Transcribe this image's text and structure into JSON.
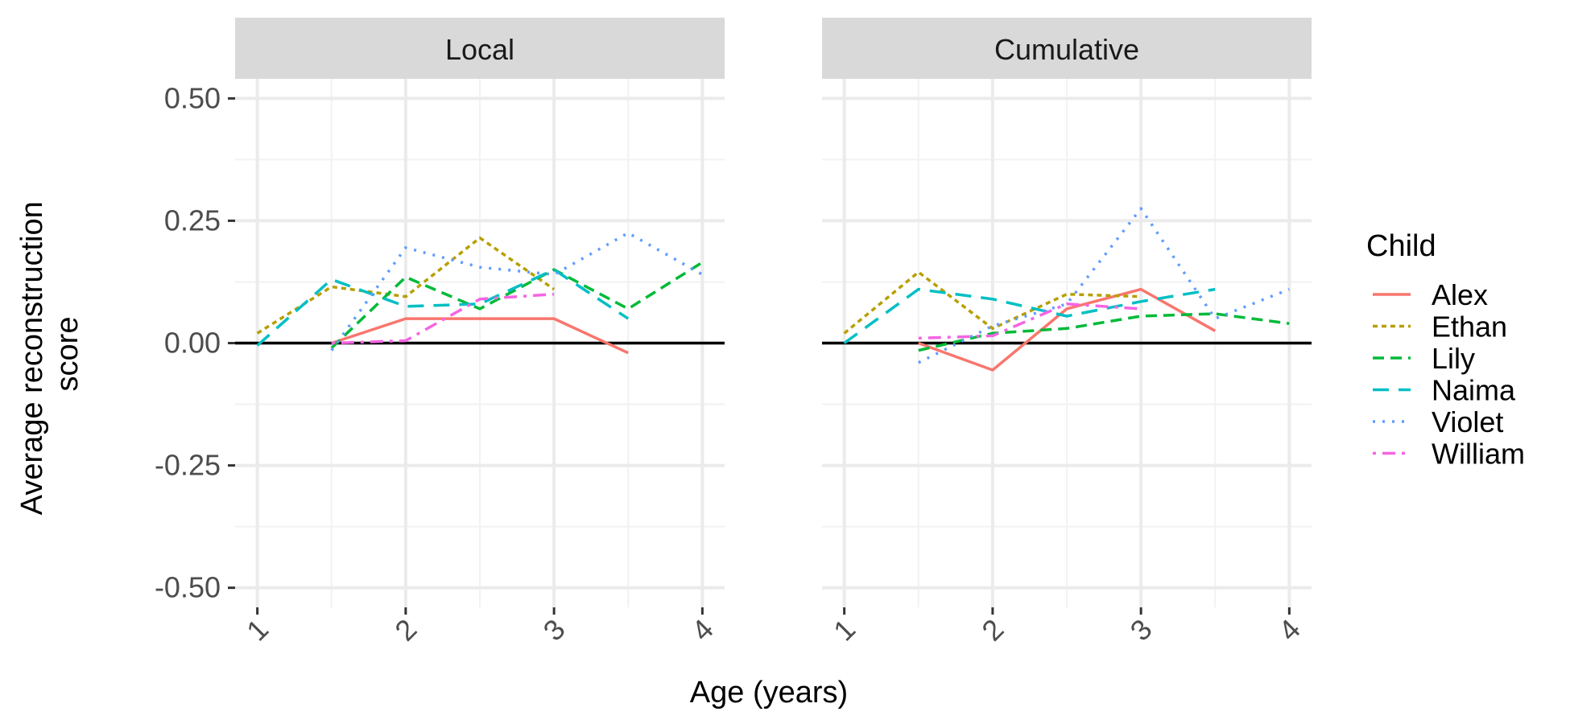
{
  "chart_data": {
    "type": "line",
    "xlabel": "Age (years)",
    "ylabel": [
      "Average reconstruction",
      "score"
    ],
    "xlim": [
      0.85,
      4.15
    ],
    "ylim": [
      -0.54,
      0.54
    ],
    "x_ticks": [
      1,
      2,
      3,
      4
    ],
    "x_tick_labels": [
      "1",
      "2",
      "3",
      "4"
    ],
    "y_ticks": [
      -0.5,
      -0.25,
      0,
      0.25,
      0.5
    ],
    "y_tick_labels": [
      "-0.50",
      "-0.25",
      "0.00",
      "0.25",
      "0.50"
    ],
    "reference_line": 0,
    "grid": true,
    "legend": {
      "title": "Child",
      "placement": "right",
      "entries": [
        "Alex",
        "Ethan",
        "Lily",
        "Naima",
        "Violet",
        "William"
      ]
    },
    "series_styles": [
      {
        "name": "Alex",
        "color": "#F8766D",
        "dash": "solid"
      },
      {
        "name": "Ethan",
        "color": "#B79F00",
        "dash": "dotted-short"
      },
      {
        "name": "Lily",
        "color": "#00BA38",
        "dash": "dashed"
      },
      {
        "name": "Naima",
        "color": "#00BFC4",
        "dash": "longdash"
      },
      {
        "name": "Violet",
        "color": "#619CFF",
        "dash": "dotted"
      },
      {
        "name": "William",
        "color": "#F564E3",
        "dash": "dotdash"
      }
    ],
    "panels": [
      {
        "title": "Local",
        "series": [
          {
            "name": "Alex",
            "points": [
              [
                1.5,
                0.0
              ],
              [
                2.0,
                0.05
              ],
              [
                2.5,
                0.05
              ],
              [
                3.0,
                0.05
              ],
              [
                3.5,
                -0.02
              ]
            ]
          },
          {
            "name": "Ethan",
            "points": [
              [
                1.0,
                0.02
              ],
              [
                1.5,
                0.115
              ],
              [
                2.0,
                0.095
              ],
              [
                2.5,
                0.215
              ],
              [
                3.0,
                0.11
              ]
            ]
          },
          {
            "name": "Lily",
            "points": [
              [
                1.5,
                -0.01
              ],
              [
                2.0,
                0.135
              ],
              [
                2.5,
                0.07
              ],
              [
                3.0,
                0.15
              ],
              [
                3.5,
                0.07
              ],
              [
                4.0,
                0.165
              ]
            ]
          },
          {
            "name": "Naima",
            "points": [
              [
                1.0,
                -0.005
              ],
              [
                1.5,
                0.13
              ],
              [
                2.0,
                0.075
              ],
              [
                2.5,
                0.08
              ],
              [
                3.0,
                0.15
              ],
              [
                3.5,
                0.05
              ]
            ]
          },
          {
            "name": "Violet",
            "points": [
              [
                1.5,
                -0.015
              ],
              [
                2.0,
                0.195
              ],
              [
                2.5,
                0.155
              ],
              [
                3.0,
                0.14
              ],
              [
                3.5,
                0.225
              ],
              [
                4.0,
                0.14
              ]
            ]
          },
          {
            "name": "William",
            "points": [
              [
                1.5,
                0.0
              ],
              [
                2.0,
                0.005
              ],
              [
                2.5,
                0.09
              ],
              [
                3.0,
                0.1
              ]
            ]
          }
        ]
      },
      {
        "title": "Cumulative",
        "series": [
          {
            "name": "Alex",
            "points": [
              [
                1.5,
                0.0
              ],
              [
                2.0,
                -0.055
              ],
              [
                2.5,
                0.07
              ],
              [
                3.0,
                0.11
              ],
              [
                3.5,
                0.025
              ]
            ]
          },
          {
            "name": "Ethan",
            "points": [
              [
                1.0,
                0.02
              ],
              [
                1.5,
                0.145
              ],
              [
                2.0,
                0.03
              ],
              [
                2.5,
                0.1
              ],
              [
                3.0,
                0.095
              ]
            ]
          },
          {
            "name": "Lily",
            "points": [
              [
                1.5,
                -0.015
              ],
              [
                2.0,
                0.02
              ],
              [
                2.5,
                0.03
              ],
              [
                3.0,
                0.055
              ],
              [
                3.5,
                0.06
              ],
              [
                4.0,
                0.04
              ]
            ]
          },
          {
            "name": "Naima",
            "points": [
              [
                1.0,
                0.0
              ],
              [
                1.5,
                0.11
              ],
              [
                2.0,
                0.09
              ],
              [
                2.5,
                0.055
              ],
              [
                3.0,
                0.085
              ],
              [
                3.5,
                0.11
              ]
            ]
          },
          {
            "name": "Violet",
            "points": [
              [
                1.5,
                -0.04
              ],
              [
                2.0,
                0.035
              ],
              [
                2.5,
                0.08
              ],
              [
                3.0,
                0.275
              ],
              [
                3.5,
                0.05
              ],
              [
                4.0,
                0.11
              ]
            ]
          },
          {
            "name": "William",
            "points": [
              [
                1.5,
                0.01
              ],
              [
                2.0,
                0.015
              ],
              [
                2.5,
                0.08
              ],
              [
                3.0,
                0.07
              ]
            ]
          }
        ]
      }
    ]
  }
}
